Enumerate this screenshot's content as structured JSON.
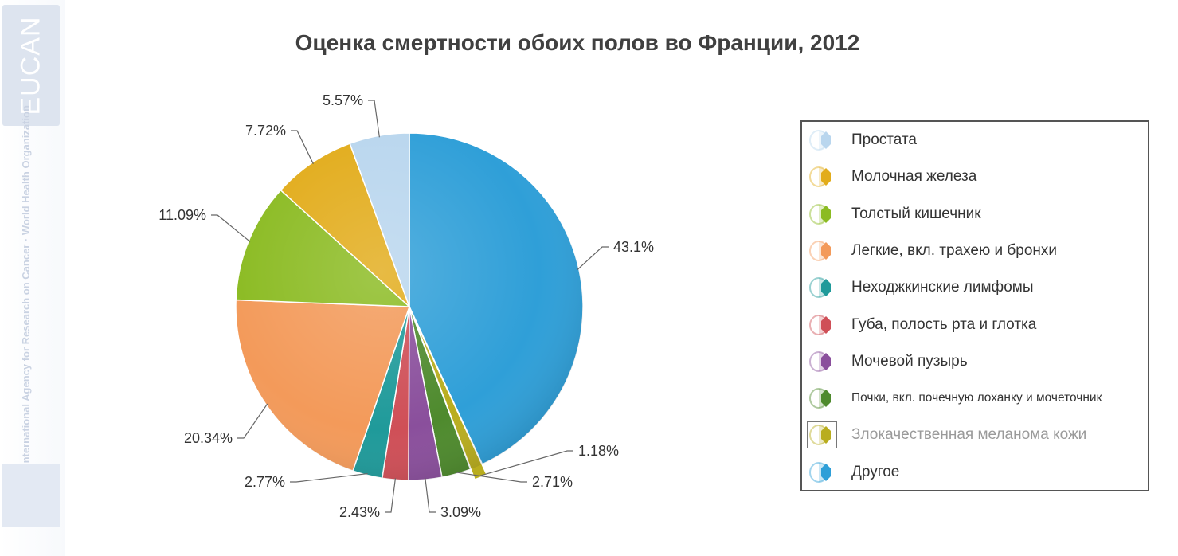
{
  "watermark": {
    "logo_text": "EUCAN",
    "org_text": "International Agency for Research on Cancer · World Health Organization"
  },
  "chart_data": {
    "type": "pie",
    "title": "Оценка смертности обоих полов во Франции, 2012",
    "legend_position": "right",
    "slices": [
      {
        "label": "Другое",
        "value": 43.1,
        "display": "43.1%",
        "color": "#2f9fd8"
      },
      {
        "label": "Злокачественная меланома кожи",
        "value": 1.18,
        "display": "1.18%",
        "color": "#b9ad1e"
      },
      {
        "label": "Почки, вкл. почечную лоханку и мочеточник",
        "value": 2.71,
        "display": "2.71%",
        "color": "#4e8a2d"
      },
      {
        "label": "Мочевой пузырь",
        "value": 3.09,
        "display": "3.09%",
        "color": "#8a4f9c"
      },
      {
        "label": "Губа, полость рта и глотка",
        "value": 2.43,
        "display": "2.43%",
        "color": "#cf4f57"
      },
      {
        "label": "Неходжкинские лимфомы",
        "value": 2.77,
        "display": "2.77%",
        "color": "#1f9a9a"
      },
      {
        "label": "Легкие, вкл. трахею и бронхи",
        "value": 20.34,
        "display": "20.34%",
        "color": "#f39a5a"
      },
      {
        "label": "Толстый кишечник",
        "value": 11.09,
        "display": "11.09%",
        "color": "#8bbb22"
      },
      {
        "label": "Молочная железа",
        "value": 7.72,
        "display": "7.72%",
        "color": "#e2ac1b"
      },
      {
        "label": "Простата",
        "value": 5.57,
        "display": "5.57%",
        "color": "#b9d6ee"
      }
    ],
    "legend_order": [
      "Простата",
      "Молочная железа",
      "Толстый кишечник",
      "Легкие, вкл. трахею и бронхи",
      "Неходжкинские лимфомы",
      "Губа, полость рта и глотка",
      "Мочевой пузырь",
      "Почки, вкл. почечную лоханку и мочеточник",
      "Злокачественная меланома кожи",
      "Другое"
    ],
    "exploded_slice": "Злокачественная меланома кожи"
  }
}
